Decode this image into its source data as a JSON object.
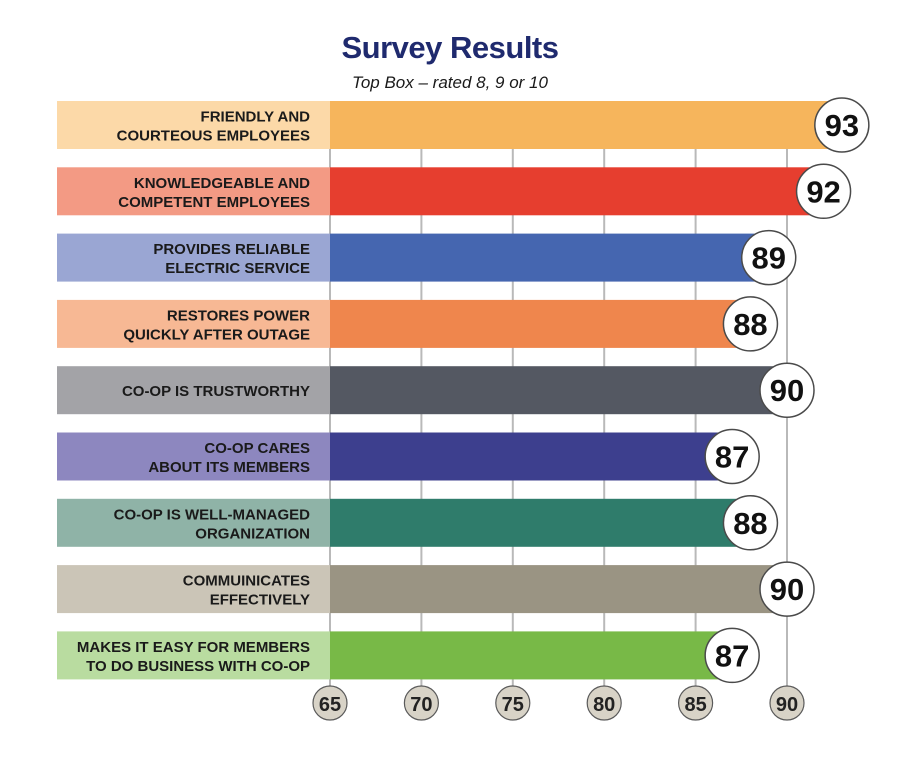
{
  "chart_data": {
    "type": "bar",
    "orientation": "horizontal",
    "title": "Survey Results",
    "subtitle": "Top Box – rated 8, 9 or 10",
    "xlim": [
      65,
      90
    ],
    "x_ticks": [
      "65",
      "70",
      "75",
      "80",
      "85",
      "90"
    ],
    "grid": true,
    "categories": [
      [
        "FRIENDLY AND",
        "COURTEOUS EMPLOYEES"
      ],
      [
        "KNOWLEDGEABLE AND",
        "COMPETENT EMPLOYEES"
      ],
      [
        "PROVIDES RELIABLE",
        "ELECTRIC SERVICE"
      ],
      [
        "RESTORES POWER",
        "QUICKLY AFTER OUTAGE"
      ],
      [
        "CO-OP IS TRUSTWORTHY"
      ],
      [
        "CO-OP CARES",
        "ABOUT ITS MEMBERS"
      ],
      [
        "CO-OP IS WELL-MANAGED",
        "ORGANIZATION"
      ],
      [
        "COMMUINICATES",
        "EFFECTIVELY"
      ],
      [
        "MAKES IT EASY FOR MEMBERS",
        "TO DO BUSINESS WITH CO-OP"
      ]
    ],
    "values": [
      93,
      92,
      89,
      88,
      90,
      87,
      88,
      90,
      87
    ],
    "value_labels": [
      "93",
      "92",
      "89",
      "88",
      "90",
      "87",
      "88",
      "90",
      "87"
    ],
    "bar_colors": [
      "#f6b55c",
      "#e63e2f",
      "#4566b0",
      "#ef864d",
      "#545862",
      "#3d3f8e",
      "#2f7c6b",
      "#9a9483",
      "#78b947"
    ],
    "label_colors": [
      "#fcd9a8",
      "#f39a84",
      "#9aa6d3",
      "#f7b894",
      "#a3a3a7",
      "#8d87bf",
      "#8fb3a7",
      "#cbc5b7",
      "#b9dca0"
    ]
  }
}
